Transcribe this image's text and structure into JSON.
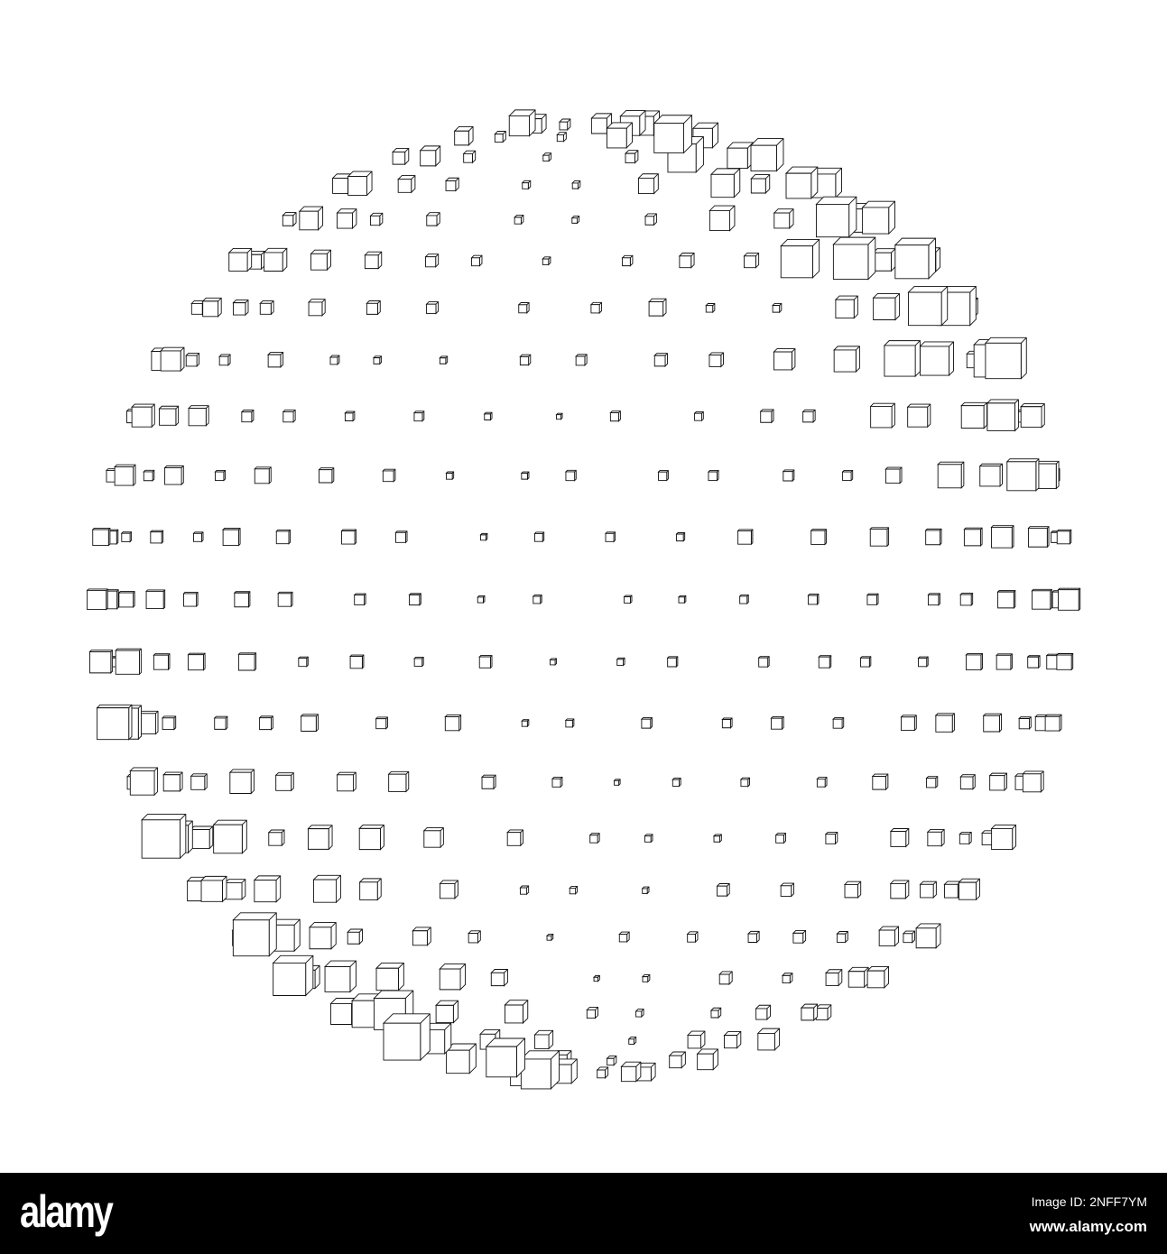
{
  "illustration": {
    "subject": "wireframe-cube-sphere",
    "stroke_color": "#111111",
    "hidden_edge_color": "#999999",
    "background": "#ffffff"
  },
  "watermark": {
    "logo": "alamy",
    "image_id": "Image ID: 2NFF7YM",
    "url": "www.alamy.com",
    "bar_color": "#000000"
  }
}
